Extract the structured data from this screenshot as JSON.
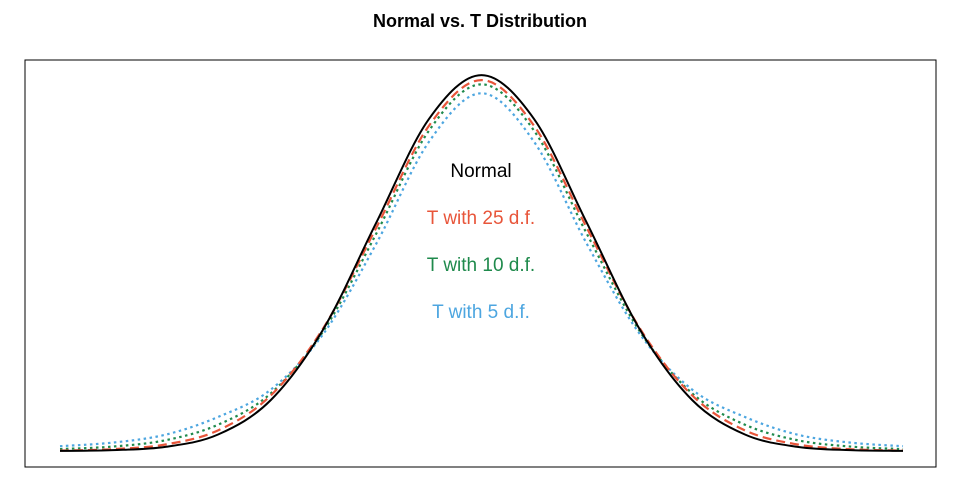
{
  "chart_data": {
    "type": "line",
    "title": "Normal vs. T Distribution",
    "xlabel": "",
    "ylabel": "",
    "xlim": [
      -4,
      4
    ],
    "ylim": [
      0,
      0.399
    ],
    "grid": false,
    "legend": "center",
    "series": [
      {
        "name": "Normal",
        "color": "#000000",
        "dash": "solid",
        "x": [
          -4.0,
          -3.5,
          -3.0,
          -2.5,
          -2.0,
          -1.5,
          -1.0,
          -0.5,
          0.0,
          0.5,
          1.0,
          1.5,
          2.0,
          2.5,
          3.0,
          3.5,
          4.0
        ],
        "values": [
          0.0001,
          0.0009,
          0.0044,
          0.0175,
          0.054,
          0.1295,
          0.242,
          0.3521,
          0.3989,
          0.3521,
          0.242,
          0.1295,
          0.054,
          0.0175,
          0.0044,
          0.0009,
          0.0001
        ]
      },
      {
        "name": "T with 25 d.f.",
        "color": "#e8553a",
        "dash": "dashed",
        "x": [
          -4.0,
          -3.5,
          -3.0,
          -2.5,
          -2.0,
          -1.5,
          -1.0,
          -0.5,
          0.0,
          0.5,
          1.0,
          1.5,
          2.0,
          2.5,
          3.0,
          3.5,
          4.0
        ],
        "values": [
          0.0004,
          0.0019,
          0.0069,
          0.0219,
          0.0589,
          0.1306,
          0.2367,
          0.3449,
          0.3936,
          0.3449,
          0.2367,
          0.1306,
          0.0589,
          0.0219,
          0.0069,
          0.0019,
          0.0004
        ]
      },
      {
        "name": "T with 10 d.f.",
        "color": "#1f8a4c",
        "dash": "dotted",
        "x": [
          -4.0,
          -3.5,
          -3.0,
          -2.5,
          -2.0,
          -1.5,
          -1.0,
          -0.5,
          0.0,
          0.5,
          1.0,
          1.5,
          2.0,
          2.5,
          3.0,
          3.5,
          4.0
        ],
        "values": [
          0.002,
          0.0047,
          0.0114,
          0.0279,
          0.0611,
          0.1274,
          0.2304,
          0.3397,
          0.3891,
          0.3397,
          0.2304,
          0.1274,
          0.0611,
          0.0279,
          0.0114,
          0.0047,
          0.002
        ]
      },
      {
        "name": "T with 5 d.f.",
        "color": "#4da6e0",
        "dash": "dotted",
        "x": [
          -4.0,
          -3.5,
          -3.0,
          -2.5,
          -2.0,
          -1.5,
          -1.0,
          -0.5,
          0.0,
          0.5,
          1.0,
          1.5,
          2.0,
          2.5,
          3.0,
          3.5,
          4.0
        ],
        "values": [
          0.0051,
          0.0089,
          0.0173,
          0.0361,
          0.0651,
          0.1245,
          0.2197,
          0.3279,
          0.3796,
          0.3279,
          0.2197,
          0.1245,
          0.0651,
          0.0361,
          0.0173,
          0.0089,
          0.0051
        ]
      }
    ]
  }
}
